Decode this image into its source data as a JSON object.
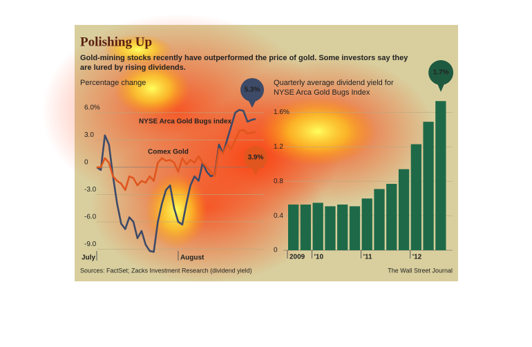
{
  "header": {
    "title": "Polishing Up",
    "subtitle": [
      "Gold-mining stocks recently have outperformed the price of gold. Some investors say they",
      "are lured by rising dividends."
    ]
  },
  "chart_data": [
    {
      "type": "line",
      "title": "Percentage change",
      "x": [
        0,
        1,
        2,
        3,
        4,
        5,
        6,
        7,
        8,
        9,
        10,
        11,
        12,
        13,
        14,
        15,
        16,
        17,
        18,
        19,
        20,
        21,
        22,
        23,
        24,
        25,
        26,
        27,
        28,
        29,
        30,
        31,
        32,
        33,
        34,
        35,
        36,
        37,
        38,
        39
      ],
      "xlim": [
        0,
        39
      ],
      "xticks": [
        {
          "value": 0,
          "label": "July"
        },
        {
          "value": 20,
          "label": "August"
        }
      ],
      "ylim": [
        -9.5,
        8.5
      ],
      "yticks": [
        {
          "value": 6,
          "label": "6.0%"
        },
        {
          "value": 3,
          "label": "3.0"
        },
        0,
        {
          "value": -3,
          "label": "-3.0"
        },
        {
          "value": -6,
          "label": "-6.0"
        },
        {
          "value": -9,
          "label": "-9.0"
        }
      ],
      "series": [
        {
          "name": "NYSE Arca Gold Bugs index",
          "color": "#3d4a68",
          "end_label": "5.3%",
          "values": [
            0,
            -0.3,
            3.5,
            2.5,
            -1,
            -4,
            -6.2,
            -6.8,
            -5.5,
            -6,
            -7.8,
            -7,
            -8.5,
            -9.2,
            -9.3,
            -6,
            -4,
            -2.5,
            -2,
            -4.5,
            -6,
            -6.3,
            -4,
            -2,
            -1,
            -1.5,
            0.5,
            -0.5,
            -1,
            -0.8,
            2.5,
            1.5,
            3,
            4.5,
            6,
            6.3,
            6.2,
            5,
            5.2,
            5.3
          ]
        },
        {
          "name": "Comex Gold",
          "color": "#e0561e",
          "end_label": "3.9%",
          "values": [
            0,
            0,
            1,
            0.5,
            -1,
            -1.5,
            -1.8,
            -2.5,
            -1,
            -1.2,
            -2,
            -1.5,
            -1.7,
            -1,
            -1.5,
            0.5,
            1,
            0.7,
            0.8,
            0.5,
            -0.5,
            1,
            0.3,
            0.8,
            0.5,
            1.2,
            0.5,
            0,
            -0.5,
            -1,
            2,
            1.5,
            2.5,
            2,
            3,
            4,
            4.1,
            3.7,
            3.8,
            3.9
          ]
        }
      ]
    },
    {
      "type": "bar",
      "title": [
        "Quarterly average dividend yield for",
        "NYSE Arca Gold Bugs Index"
      ],
      "categories": [
        "2009",
        null,
        "'10",
        null,
        null,
        null,
        "'11",
        null,
        null,
        null,
        "'12",
        null,
        null
      ],
      "values": [
        0.53,
        0.53,
        0.55,
        0.51,
        0.53,
        0.51,
        0.6,
        0.71,
        0.77,
        0.94,
        1.23,
        1.49,
        1.73
      ],
      "value_labels": [
        null,
        null,
        null,
        null,
        null,
        null,
        null,
        null,
        null,
        null,
        null,
        null,
        "1.7%"
      ],
      "color": "#1e6a48",
      "ylim": [
        0,
        1.78
      ],
      "yticks": [
        {
          "value": 1.6,
          "label": "1.6%"
        },
        1.2,
        0.8,
        0.4,
        0
      ]
    }
  ],
  "footer": {
    "source": "Sources: FactSet; Zacks Investment Research (dividend yield)",
    "credit": "The Wall Street Journal"
  }
}
